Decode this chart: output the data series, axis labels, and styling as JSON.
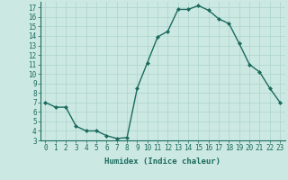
{
  "xlabel": "Humidex (Indice chaleur)",
  "x": [
    0,
    1,
    2,
    3,
    4,
    5,
    6,
    7,
    8,
    9,
    10,
    11,
    12,
    13,
    14,
    15,
    16,
    17,
    18,
    19,
    20,
    21,
    22,
    23
  ],
  "y": [
    7,
    6.5,
    6.5,
    4.5,
    4,
    4,
    3.5,
    3.2,
    3.3,
    8.5,
    11.2,
    13.9,
    14.5,
    16.8,
    16.8,
    17.2,
    16.7,
    15.8,
    15.3,
    13.2,
    11.0,
    10.2,
    8.5,
    7
  ],
  "line_color": "#1a6b5e",
  "marker": "D",
  "marker_size": 2.0,
  "bg_color": "#cce8e2",
  "grid_color": "#aad4cc",
  "tick_color": "#1a6b5e",
  "label_color": "#1a6b5e",
  "xlim": [
    -0.5,
    23.5
  ],
  "ylim": [
    3,
    17.6
  ],
  "yticks": [
    3,
    4,
    5,
    6,
    7,
    8,
    9,
    10,
    11,
    12,
    13,
    14,
    15,
    16,
    17
  ],
  "xticks": [
    0,
    1,
    2,
    3,
    4,
    5,
    6,
    7,
    8,
    9,
    10,
    11,
    12,
    13,
    14,
    15,
    16,
    17,
    18,
    19,
    20,
    21,
    22,
    23
  ],
  "xlabel_fontsize": 6.5,
  "tick_fontsize": 5.5,
  "linewidth": 1.0
}
